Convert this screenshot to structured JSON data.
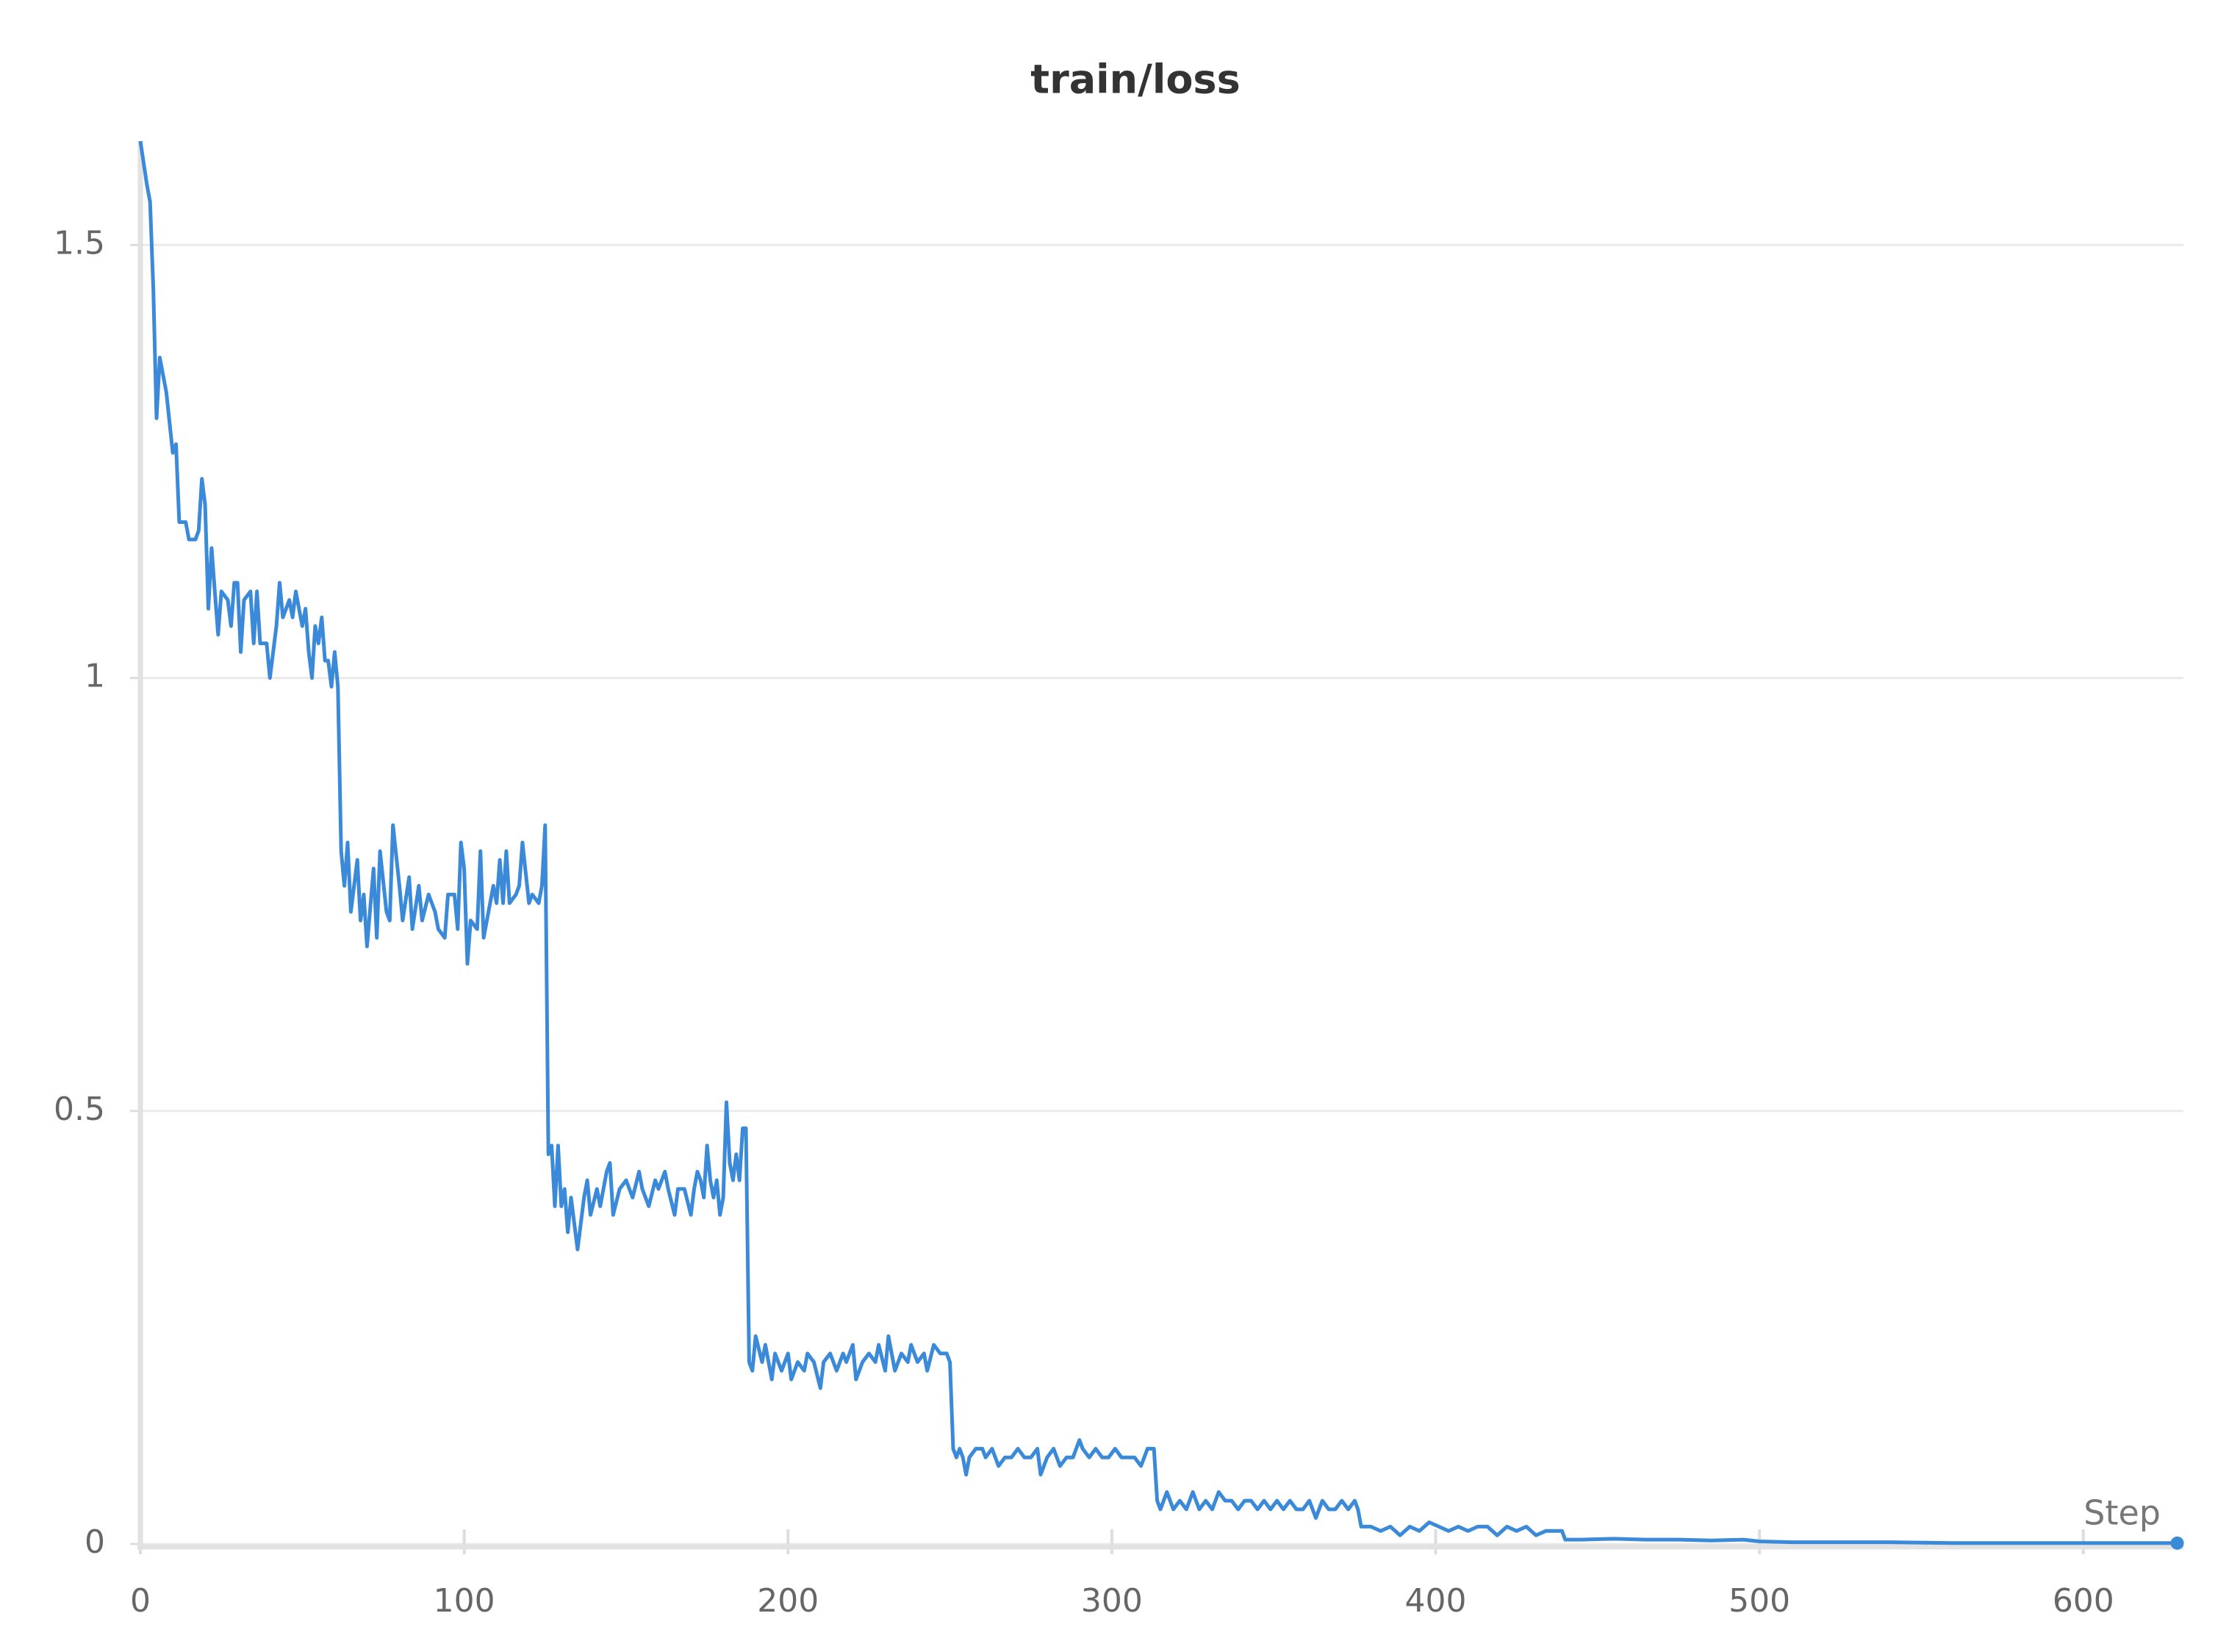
{
  "chart_data": {
    "type": "line",
    "title": "train/loss",
    "x_label": "Step",
    "color": "#3b8ad9",
    "grid": true,
    "xlim": [
      0,
      630
    ],
    "ylim": [
      0,
      1.62
    ],
    "xticks": [
      0,
      100,
      200,
      300,
      400,
      500,
      600
    ],
    "yticks": [
      0,
      0.5,
      1,
      1.5
    ],
    "x": [
      0,
      2,
      3,
      4,
      5,
      6,
      8,
      10,
      11,
      12,
      14,
      15,
      17,
      18,
      19,
      20,
      21,
      22,
      23,
      24,
      25,
      27,
      28,
      29,
      30,
      31,
      32,
      34,
      35,
      36,
      37,
      39,
      40,
      42,
      43,
      44,
      46,
      47,
      48,
      50,
      51,
      52,
      53,
      54,
      55,
      56,
      57,
      58,
      59,
      60,
      61,
      62,
      63,
      64,
      65,
      67,
      68,
      69,
      70,
      72,
      73,
      74,
      76,
      77,
      78,
      80,
      81,
      83,
      84,
      86,
      87,
      89,
      91,
      92,
      94,
      95,
      97,
      98,
      99,
      100,
      101,
      102,
      104,
      105,
      106,
      107,
      109,
      110,
      111,
      112,
      113,
      114,
      116,
      117,
      118,
      120,
      121,
      123,
      124,
      125,
      126,
      127,
      128,
      129,
      130,
      131,
      132,
      133,
      135,
      137,
      138,
      139,
      141,
      142,
      144,
      145,
      146,
      148,
      150,
      152,
      154,
      155,
      157,
      159,
      160,
      162,
      163,
      165,
      166,
      168,
      170,
      171,
      172,
      173,
      174,
      175,
      176,
      177,
      178,
      179,
      180,
      181,
      182,
      183,
      184,
      185,
      186,
      187,
      188,
      189,
      190,
      192,
      193,
      195,
      196,
      198,
      200,
      201,
      203,
      205,
      206,
      208,
      210,
      211,
      213,
      215,
      217,
      218,
      220,
      221,
      223,
      225,
      227,
      228,
      230,
      231,
      233,
      235,
      237,
      238,
      240,
      242,
      243,
      245,
      247,
      249,
      250,
      251,
      252,
      253,
      254,
      255,
      256,
      258,
      260,
      261,
      263,
      265,
      267,
      269,
      271,
      273,
      275,
      277,
      278,
      280,
      282,
      284,
      286,
      288,
      290,
      291,
      293,
      295,
      297,
      299,
      301,
      303,
      305,
      307,
      309,
      311,
      313,
      314,
      315,
      317,
      319,
      321,
      323,
      325,
      327,
      329,
      331,
      333,
      335,
      337,
      339,
      341,
      343,
      345,
      347,
      349,
      351,
      353,
      355,
      357,
      359,
      361,
      363,
      365,
      367,
      369,
      371,
      373,
      375,
      376,
      377,
      380,
      383,
      386,
      389,
      392,
      395,
      398,
      401,
      404,
      407,
      410,
      413,
      416,
      419,
      422,
      425,
      428,
      431,
      434,
      437,
      439,
      440,
      445,
      455,
      465,
      475,
      485,
      495,
      500,
      510,
      520,
      540,
      560,
      580,
      600,
      620,
      629
    ],
    "values": [
      1.62,
      1.57,
      1.55,
      1.45,
      1.3,
      1.37,
      1.33,
      1.26,
      1.27,
      1.18,
      1.18,
      1.16,
      1.16,
      1.17,
      1.23,
      1.2,
      1.08,
      1.15,
      1.1,
      1.05,
      1.1,
      1.09,
      1.06,
      1.11,
      1.11,
      1.03,
      1.09,
      1.1,
      1.04,
      1.1,
      1.04,
      1.04,
      1.0,
      1.06,
      1.11,
      1.07,
      1.09,
      1.07,
      1.1,
      1.06,
      1.08,
      1.03,
      1.0,
      1.06,
      1.04,
      1.07,
      1.02,
      1.02,
      0.99,
      1.03,
      0.99,
      0.8,
      0.76,
      0.81,
      0.73,
      0.79,
      0.72,
      0.75,
      0.69,
      0.78,
      0.7,
      0.8,
      0.73,
      0.72,
      0.83,
      0.76,
      0.72,
      0.77,
      0.71,
      0.76,
      0.72,
      0.75,
      0.73,
      0.71,
      0.7,
      0.75,
      0.75,
      0.71,
      0.81,
      0.78,
      0.67,
      0.72,
      0.71,
      0.8,
      0.7,
      0.72,
      0.76,
      0.74,
      0.79,
      0.74,
      0.8,
      0.74,
      0.75,
      0.76,
      0.81,
      0.74,
      0.75,
      0.74,
      0.76,
      0.83,
      0.45,
      0.46,
      0.39,
      0.46,
      0.39,
      0.41,
      0.36,
      0.4,
      0.34,
      0.4,
      0.42,
      0.38,
      0.41,
      0.39,
      0.43,
      0.44,
      0.38,
      0.41,
      0.42,
      0.4,
      0.43,
      0.41,
      0.39,
      0.42,
      0.41,
      0.43,
      0.41,
      0.38,
      0.41,
      0.41,
      0.38,
      0.41,
      0.43,
      0.42,
      0.4,
      0.46,
      0.42,
      0.4,
      0.42,
      0.38,
      0.4,
      0.51,
      0.44,
      0.42,
      0.45,
      0.42,
      0.48,
      0.48,
      0.21,
      0.2,
      0.24,
      0.21,
      0.23,
      0.19,
      0.22,
      0.2,
      0.22,
      0.19,
      0.21,
      0.2,
      0.22,
      0.21,
      0.18,
      0.21,
      0.22,
      0.2,
      0.22,
      0.21,
      0.23,
      0.19,
      0.21,
      0.22,
      0.21,
      0.23,
      0.2,
      0.24,
      0.2,
      0.22,
      0.21,
      0.23,
      0.21,
      0.22,
      0.2,
      0.23,
      0.22,
      0.22,
      0.21,
      0.11,
      0.1,
      0.11,
      0.1,
      0.08,
      0.1,
      0.11,
      0.11,
      0.1,
      0.11,
      0.09,
      0.1,
      0.1,
      0.11,
      0.1,
      0.1,
      0.11,
      0.08,
      0.1,
      0.11,
      0.09,
      0.1,
      0.1,
      0.12,
      0.11,
      0.1,
      0.11,
      0.1,
      0.1,
      0.11,
      0.1,
      0.1,
      0.1,
      0.09,
      0.11,
      0.11,
      0.05,
      0.04,
      0.06,
      0.04,
      0.05,
      0.04,
      0.06,
      0.04,
      0.05,
      0.04,
      0.06,
      0.05,
      0.05,
      0.04,
      0.05,
      0.05,
      0.04,
      0.05,
      0.04,
      0.05,
      0.04,
      0.05,
      0.04,
      0.04,
      0.05,
      0.03,
      0.05,
      0.04,
      0.04,
      0.05,
      0.04,
      0.05,
      0.04,
      0.02,
      0.02,
      0.015,
      0.02,
      0.01,
      0.02,
      0.015,
      0.025,
      0.02,
      0.015,
      0.02,
      0.015,
      0.02,
      0.02,
      0.01,
      0.02,
      0.015,
      0.02,
      0.01,
      0.015,
      0.015,
      0.015,
      0.005,
      0.005,
      0.006,
      0.005,
      0.005,
      0.004,
      0.005,
      0.003,
      0.002,
      0.002,
      0.002,
      0.001,
      0.001,
      0.001,
      0.001,
      0.001
    ]
  }
}
